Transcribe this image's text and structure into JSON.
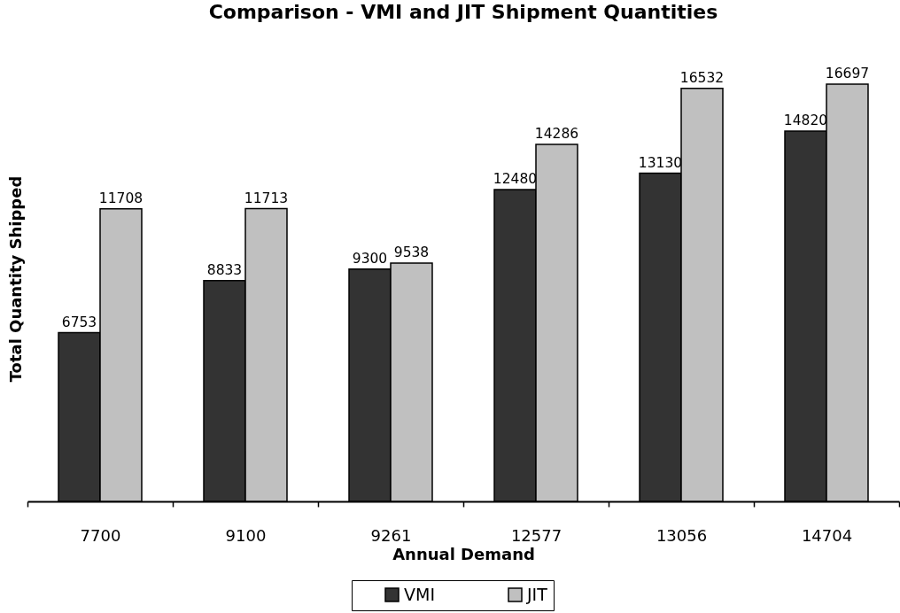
{
  "chart_data": {
    "type": "bar",
    "title": "Comparison - VMI and JIT Shipment Quantities",
    "xlabel": "Annual Demand",
    "ylabel": "Total Quantity Shipped",
    "categories": [
      "7700",
      "9100",
      "9261",
      "12577",
      "13056",
      "14704"
    ],
    "series": [
      {
        "name": "VMI",
        "color": "#333333",
        "values": [
          6753,
          8833,
          9300,
          12480,
          13130,
          14820
        ]
      },
      {
        "name": "JIT",
        "color": "#c0c0c0",
        "values": [
          11708,
          11713,
          9538,
          14286,
          16532,
          16697
        ]
      }
    ],
    "data_labels": true,
    "legend": "bottom",
    "tick_labels": "x"
  }
}
